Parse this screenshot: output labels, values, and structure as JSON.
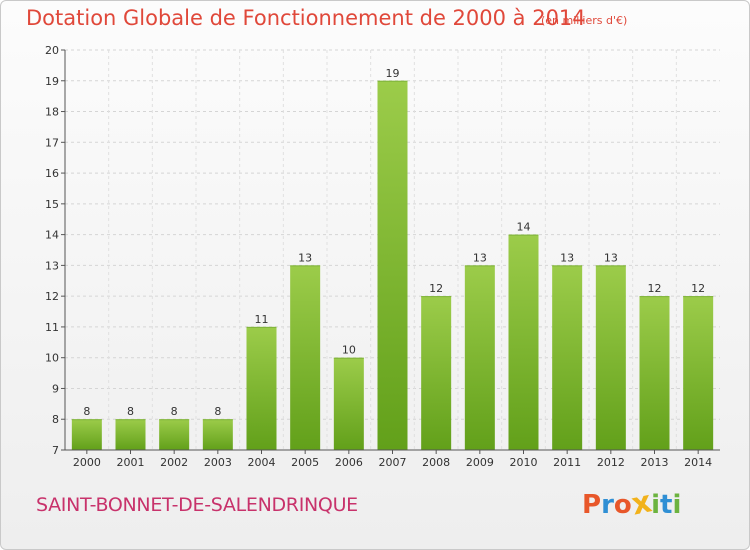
{
  "header": {
    "title": "Dotation Globale de Fonctionnement de 2000 à 2014",
    "unit": "(en milliers d'€)"
  },
  "footer": {
    "commune": "SAINT-BONNET-DE-SALENDRINQUE",
    "logo": "Proxiti"
  },
  "colors": {
    "bar_top": "#9ccc4a",
    "bar_bottom": "#62a01a",
    "title": "#e0483a",
    "commune": "#c8326b",
    "logo": [
      "#e8572a",
      "#2f8fd4",
      "#e8572a",
      "#f2b21b",
      "#6cb33f",
      "#2f8fd4",
      "#6cb33f"
    ]
  },
  "chart_data": {
    "type": "bar",
    "categories": [
      "2000",
      "2001",
      "2002",
      "2003",
      "2004",
      "2005",
      "2006",
      "2007",
      "2008",
      "2009",
      "2010",
      "2011",
      "2012",
      "2013",
      "2014"
    ],
    "values": [
      8,
      8,
      8,
      8,
      11,
      13,
      10,
      19,
      12,
      13,
      14,
      13,
      13,
      12,
      12
    ],
    "title": "Dotation Globale de Fonctionnement de 2000 à 2014",
    "xlabel": "",
    "ylabel": "",
    "ylim": [
      7,
      20
    ],
    "yticks": [
      7,
      8,
      9,
      10,
      11,
      12,
      13,
      14,
      15,
      16,
      17,
      18,
      19,
      20
    ],
    "grid": true,
    "grid_style": "dashed"
  }
}
